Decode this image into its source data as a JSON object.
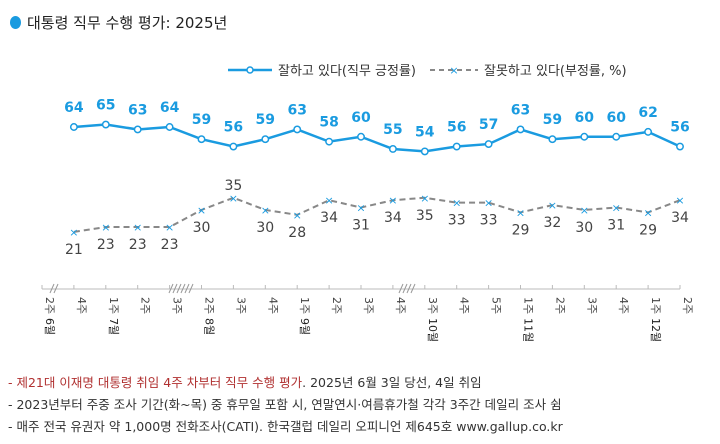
{
  "title": "대통령 직무 수행 평가: 2025년",
  "colors": {
    "approve": "#1a9be0",
    "disapprove": "#888888",
    "disapprove_marker": "#1a9be0",
    "title_dot": "#1a9be0",
    "note_highlight": "#b03030"
  },
  "chart_data": {
    "type": "line",
    "title": "대통령 직무 수행 평가: 2025년",
    "legend_position": "top-right",
    "grid": false,
    "x": [
      "6월 2주",
      "4주",
      "7월 1주",
      "2주",
      "3주",
      "8월 2주",
      "3주",
      "4주",
      "9월 1주",
      "2주",
      "3주",
      "4주",
      "10월 3주",
      "4주",
      "5주",
      "11월 1주",
      "2주",
      "3주",
      "4주",
      "12월 1주",
      "2주"
    ],
    "x_week_labels": [
      "2주",
      "4주",
      "1주",
      "2주",
      "3주",
      "2주",
      "3주",
      "4주",
      "1주",
      "2주",
      "3주",
      "4주",
      "3주",
      "4주",
      "5주",
      "1주",
      "2주",
      "3주",
      "4주",
      "1주",
      "2주"
    ],
    "x_month_labels": [
      "6월",
      "",
      "7월",
      "",
      "",
      "8월",
      "",
      "",
      "9월",
      "",
      "",
      "",
      "10월",
      "",
      "",
      "11월",
      "",
      "",
      "",
      "12월",
      ""
    ],
    "axis_breaks_after": [
      "6월 2주",
      "7월 3주",
      "10월 4주"
    ],
    "series": [
      {
        "name": "잘하고 있다(직무 긍정률)",
        "values": [
          null,
          64,
          65,
          63,
          64,
          59,
          56,
          59,
          63,
          58,
          60,
          55,
          54,
          56,
          57,
          63,
          59,
          60,
          60,
          62,
          56
        ]
      },
      {
        "name": "잘못하고 있다(부정률, %)",
        "values": [
          null,
          21,
          23,
          23,
          23,
          30,
          35,
          30,
          28,
          34,
          31,
          34,
          35,
          33,
          33,
          29,
          32,
          30,
          31,
          29,
          34
        ]
      }
    ]
  },
  "notes": {
    "line1_highlight": "- 제21대 이재명 대통령 취임 4주 차부터 직무 수행 평가",
    "line1_rest": ". 2025년 6월 3일 당선, 4일 취임",
    "line2": "- 2023년부터 주중 조사 기간(화~목) 중 휴무일 포함 시, 연말연시·여름휴가철 각각 3주간 데일리 조사 쉼",
    "line3": "- 매주 전국 유권자 약 1,000명 전화조사(CATI). 한국갤럽 데일리 오피니언 제645호 www.gallup.co.kr"
  }
}
